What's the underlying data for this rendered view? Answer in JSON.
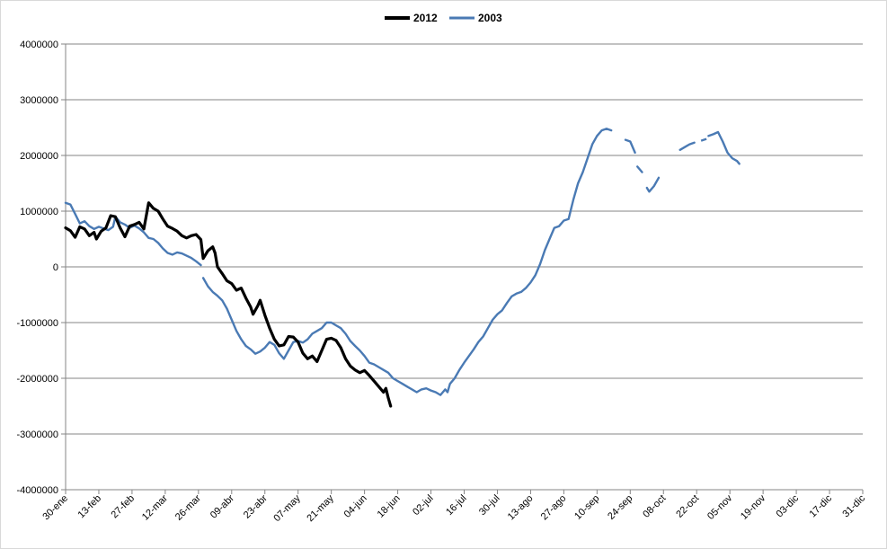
{
  "chart_data": {
    "type": "line",
    "title": "",
    "xlabel": "",
    "ylabel": "",
    "ylim": [
      -4000000,
      4000000
    ],
    "y_ticks": [
      4000000,
      3000000,
      2000000,
      1000000,
      0,
      -1000000,
      -2000000,
      -3000000,
      -4000000
    ],
    "x_tick_labels": [
      "30-ene",
      "13-feb",
      "27-feb",
      "12-mar",
      "26-mar",
      "09-abr",
      "23-abr",
      "07-may",
      "21-may",
      "04-jun",
      "18-jun",
      "02-jul",
      "16-jul",
      "30-jul",
      "13-ago",
      "27-ago",
      "10-sep",
      "24-sep",
      "08-oct",
      "22-oct",
      "05-nov",
      "19-nov",
      "03-dic",
      "17-dic",
      "31-dic"
    ],
    "grid": "horizontal",
    "legend_position": "top",
    "x_unit": "days since 30-ene",
    "series": [
      {
        "name": "2012",
        "color": "#000000",
        "segments": [
          [
            [
              0,
              700000
            ],
            [
              2,
              650000
            ],
            [
              4,
              530000
            ],
            [
              6,
              720000
            ],
            [
              8,
              680000
            ],
            [
              10,
              560000
            ],
            [
              12,
              620000
            ],
            [
              13,
              500000
            ],
            [
              15,
              640000
            ],
            [
              17,
              700000
            ],
            [
              19,
              920000
            ],
            [
              21,
              900000
            ],
            [
              23,
              700000
            ],
            [
              25,
              540000
            ],
            [
              27,
              730000
            ],
            [
              29,
              760000
            ],
            [
              31,
              800000
            ],
            [
              33,
              680000
            ],
            [
              35,
              1150000
            ],
            [
              37,
              1050000
            ],
            [
              39,
              1000000
            ],
            [
              41,
              860000
            ],
            [
              43,
              730000
            ],
            [
              45,
              690000
            ],
            [
              47,
              640000
            ],
            [
              49,
              560000
            ],
            [
              51,
              520000
            ],
            [
              53,
              560000
            ],
            [
              55,
              580000
            ],
            [
              57,
              490000
            ],
            [
              58,
              150000
            ],
            [
              60,
              290000
            ],
            [
              62,
              360000
            ],
            [
              63,
              250000
            ],
            [
              64,
              0
            ],
            [
              66,
              -120000
            ],
            [
              68,
              -250000
            ],
            [
              70,
              -300000
            ],
            [
              72,
              -420000
            ],
            [
              74,
              -380000
            ],
            [
              76,
              -560000
            ],
            [
              78,
              -720000
            ],
            [
              79,
              -850000
            ],
            [
              81,
              -700000
            ],
            [
              82,
              -600000
            ],
            [
              84,
              -870000
            ],
            [
              86,
              -1100000
            ],
            [
              88,
              -1300000
            ],
            [
              90,
              -1420000
            ],
            [
              92,
              -1400000
            ],
            [
              94,
              -1250000
            ],
            [
              96,
              -1260000
            ],
            [
              98,
              -1350000
            ],
            [
              100,
              -1550000
            ],
            [
              102,
              -1650000
            ],
            [
              104,
              -1600000
            ],
            [
              106,
              -1700000
            ],
            [
              108,
              -1500000
            ],
            [
              110,
              -1300000
            ],
            [
              112,
              -1280000
            ],
            [
              114,
              -1320000
            ],
            [
              116,
              -1450000
            ],
            [
              118,
              -1650000
            ],
            [
              120,
              -1780000
            ],
            [
              122,
              -1850000
            ],
            [
              124,
              -1900000
            ],
            [
              126,
              -1860000
            ],
            [
              128,
              -1950000
            ],
            [
              130,
              -2050000
            ],
            [
              132,
              -2150000
            ],
            [
              134,
              -2250000
            ],
            [
              135,
              -2180000
            ],
            [
              136,
              -2350000
            ],
            [
              137,
              -2500000
            ]
          ]
        ]
      },
      {
        "name": "2003",
        "color": "#4a7ab4",
        "segments": [
          [
            [
              0,
              1150000
            ],
            [
              2,
              1120000
            ],
            [
              4,
              950000
            ],
            [
              6,
              780000
            ],
            [
              8,
              820000
            ],
            [
              10,
              730000
            ],
            [
              12,
              680000
            ],
            [
              14,
              720000
            ],
            [
              16,
              690000
            ],
            [
              18,
              660000
            ],
            [
              20,
              720000
            ],
            [
              21,
              900000
            ],
            [
              23,
              800000
            ],
            [
              25,
              760000
            ],
            [
              27,
              700000
            ],
            [
              29,
              740000
            ],
            [
              31,
              690000
            ],
            [
              33,
              620000
            ],
            [
              35,
              520000
            ],
            [
              37,
              500000
            ],
            [
              39,
              430000
            ],
            [
              41,
              330000
            ],
            [
              43,
              250000
            ],
            [
              45,
              220000
            ],
            [
              47,
              260000
            ],
            [
              49,
              240000
            ],
            [
              51,
              200000
            ],
            [
              53,
              160000
            ],
            [
              55,
              100000
            ],
            [
              57,
              30000
            ]
          ],
          [
            [
              58,
              -200000
            ],
            [
              60,
              -350000
            ],
            [
              62,
              -450000
            ],
            [
              64,
              -520000
            ],
            [
              66,
              -600000
            ],
            [
              68,
              -750000
            ],
            [
              70,
              -950000
            ],
            [
              72,
              -1150000
            ],
            [
              74,
              -1300000
            ],
            [
              76,
              -1420000
            ],
            [
              78,
              -1480000
            ],
            [
              80,
              -1560000
            ],
            [
              82,
              -1520000
            ],
            [
              84,
              -1450000
            ],
            [
              86,
              -1350000
            ],
            [
              88,
              -1400000
            ],
            [
              90,
              -1550000
            ],
            [
              92,
              -1650000
            ],
            [
              94,
              -1500000
            ],
            [
              96,
              -1350000
            ],
            [
              98,
              -1330000
            ],
            [
              100,
              -1360000
            ],
            [
              102,
              -1300000
            ],
            [
              104,
              -1200000
            ],
            [
              106,
              -1150000
            ],
            [
              108,
              -1100000
            ],
            [
              110,
              -1000000
            ],
            [
              112,
              -1000000
            ],
            [
              114,
              -1050000
            ],
            [
              116,
              -1100000
            ],
            [
              118,
              -1200000
            ],
            [
              120,
              -1330000
            ],
            [
              122,
              -1420000
            ],
            [
              124,
              -1500000
            ],
            [
              126,
              -1600000
            ],
            [
              128,
              -1720000
            ],
            [
              130,
              -1750000
            ],
            [
              132,
              -1800000
            ],
            [
              134,
              -1850000
            ],
            [
              136,
              -1900000
            ],
            [
              138,
              -2000000
            ],
            [
              140,
              -2050000
            ],
            [
              142,
              -2100000
            ],
            [
              144,
              -2150000
            ],
            [
              146,
              -2200000
            ],
            [
              148,
              -2250000
            ],
            [
              150,
              -2200000
            ],
            [
              152,
              -2180000
            ],
            [
              154,
              -2220000
            ],
            [
              156,
              -2250000
            ],
            [
              158,
              -2300000
            ],
            [
              160,
              -2200000
            ],
            [
              161,
              -2250000
            ],
            [
              162,
              -2100000
            ],
            [
              164,
              -2000000
            ],
            [
              166,
              -1850000
            ],
            [
              168,
              -1720000
            ],
            [
              170,
              -1600000
            ],
            [
              172,
              -1480000
            ],
            [
              174,
              -1350000
            ],
            [
              176,
              -1250000
            ],
            [
              178,
              -1100000
            ],
            [
              180,
              -950000
            ],
            [
              182,
              -850000
            ],
            [
              184,
              -780000
            ],
            [
              186,
              -650000
            ],
            [
              188,
              -530000
            ],
            [
              190,
              -480000
            ],
            [
              192,
              -450000
            ],
            [
              194,
              -380000
            ],
            [
              196,
              -280000
            ],
            [
              198,
              -150000
            ],
            [
              200,
              50000
            ],
            [
              202,
              300000
            ],
            [
              204,
              500000
            ],
            [
              206,
              700000
            ],
            [
              208,
              730000
            ],
            [
              210,
              830000
            ],
            [
              212,
              860000
            ],
            [
              214,
              1200000
            ],
            [
              216,
              1500000
            ],
            [
              218,
              1700000
            ],
            [
              220,
              1950000
            ],
            [
              222,
              2200000
            ],
            [
              224,
              2350000
            ],
            [
              226,
              2450000
            ],
            [
              228,
              2480000
            ],
            [
              230,
              2450000
            ]
          ],
          [
            [
              236,
              2280000
            ],
            [
              238,
              2250000
            ],
            [
              240,
              2050000
            ]
          ],
          [
            [
              241,
              1800000
            ],
            [
              243,
              1700000
            ]
          ],
          [
            [
              245,
              1420000
            ],
            [
              246,
              1350000
            ],
            [
              248,
              1450000
            ],
            [
              250,
              1600000
            ]
          ],
          [
            [
              259,
              2100000
            ],
            [
              261,
              2150000
            ],
            [
              263,
              2200000
            ],
            [
              265,
              2230000
            ]
          ],
          [
            [
              269,
              2280000
            ]
          ],
          [
            [
              271,
              2350000
            ],
            [
              273,
              2380000
            ],
            [
              275,
              2420000
            ],
            [
              277,
              2250000
            ],
            [
              279,
              2050000
            ],
            [
              281,
              1950000
            ],
            [
              283,
              1900000
            ],
            [
              284,
              1850000
            ]
          ]
        ]
      }
    ]
  }
}
